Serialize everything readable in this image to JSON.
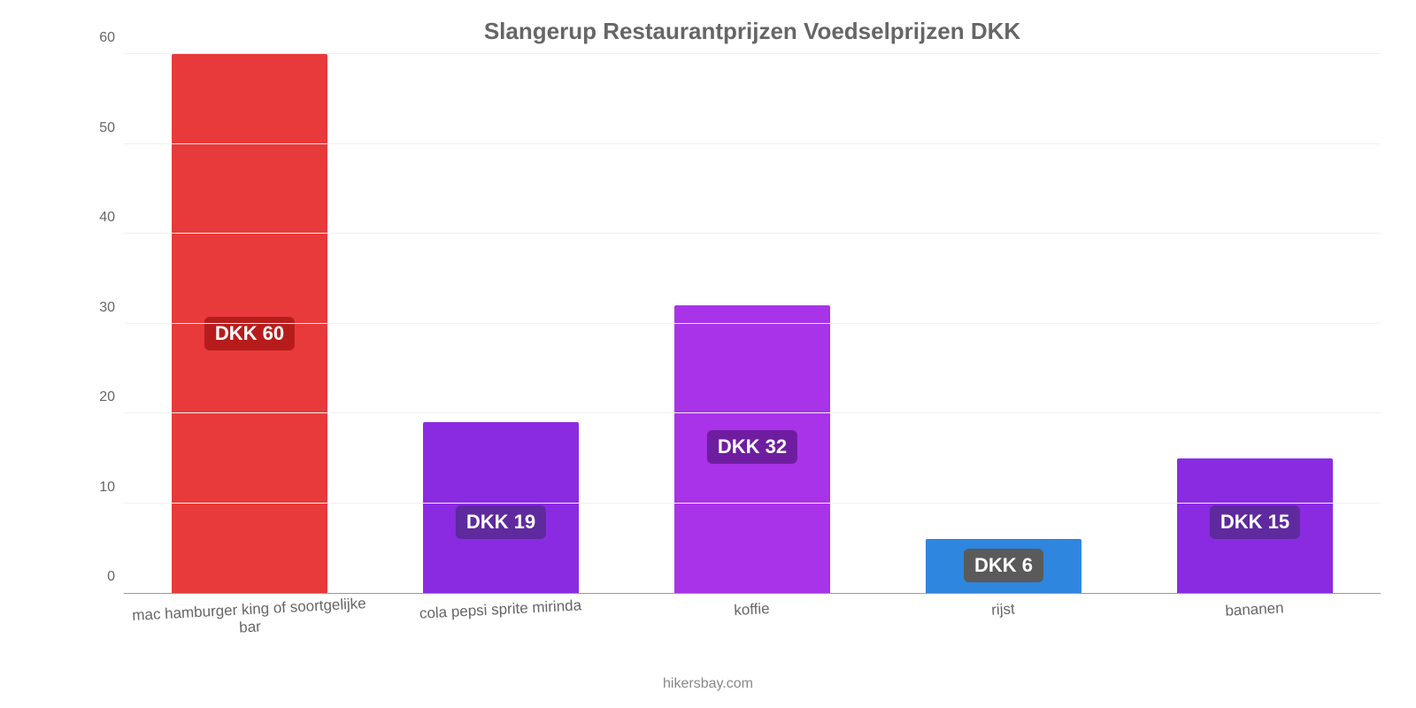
{
  "chart": {
    "type": "bar",
    "title": "Slangerup Restaurantprijzen Voedselprijzen DKK",
    "title_fontsize": 26,
    "title_color": "#666666",
    "attribution": "hikersbay.com",
    "background_color": "#ffffff",
    "grid_color": "#f0f0f0",
    "axis_color": "#999999",
    "tick_color": "#666666",
    "tick_fontsize": 16,
    "xlabel_fontsize": 17,
    "ylim": [
      0,
      60
    ],
    "yticks": [
      0,
      10,
      20,
      30,
      40,
      50,
      60
    ],
    "bar_width_pct": 62,
    "value_badge_fontsize": 22,
    "value_badge_text_color": "#ffffff",
    "categories": [
      "mac hamburger king of soortgelijke bar",
      "cola pepsi sprite mirinda",
      "koffie",
      "rijst",
      "bananen"
    ],
    "series": [
      {
        "value": 60,
        "label": "DKK 60",
        "bar_color": "#e83a3a",
        "badge_color": "#b71c1c",
        "badge_bottom_pct": 45
      },
      {
        "value": 19,
        "label": "DKK 19",
        "bar_color": "#8a2be2",
        "badge_color": "#5e2a9e",
        "badge_bottom_pct": 10
      },
      {
        "value": 32,
        "label": "DKK 32",
        "bar_color": "#a933e8",
        "badge_color": "#6e1da0",
        "badge_bottom_pct": 24
      },
      {
        "value": 6,
        "label": "DKK 6",
        "bar_color": "#2e86de",
        "badge_color": "#5a5a5a",
        "badge_bottom_pct": 2
      },
      {
        "value": 15,
        "label": "DKK 15",
        "bar_color": "#8a2be2",
        "badge_color": "#5e2a9e",
        "badge_bottom_pct": 10
      }
    ]
  }
}
